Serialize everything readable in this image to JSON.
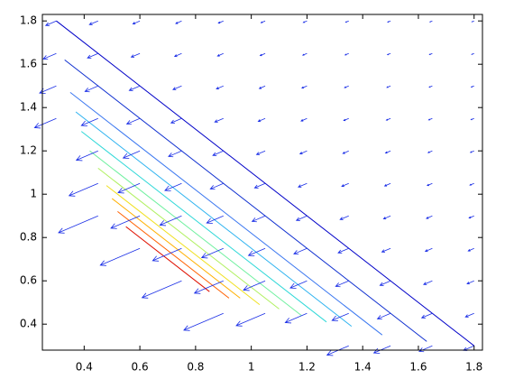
{
  "chart_data": {
    "type": "quiver",
    "xlim": [
      0.25,
      1.83
    ],
    "ylim": [
      0.28,
      1.83
    ],
    "xticks": [
      0.4,
      0.6,
      0.8,
      1,
      1.2,
      1.4,
      1.6,
      1.8
    ],
    "yticks": [
      0.4,
      0.6,
      0.8,
      1,
      1.2,
      1.4,
      1.6,
      1.8
    ],
    "arrow_color": "#1a2ee6",
    "x": [
      0.3,
      0.45,
      0.6,
      0.75,
      0.9,
      1.05,
      1.2,
      1.35,
      1.5,
      1.65,
      1.8
    ],
    "y": [
      0.3,
      0.45,
      0.6,
      0.75,
      0.9,
      1.05,
      1.2,
      1.35,
      1.5,
      1.65,
      1.8
    ],
    "u": [
      [
        null,
        null,
        null,
        null,
        null,
        null,
        null,
        -0.078,
        -0.06,
        -0.047,
        -0.038
      ],
      [
        null,
        null,
        null,
        null,
        -0.142,
        -0.104,
        -0.078,
        -0.06,
        -0.047,
        -0.038,
        -0.031
      ],
      [
        null,
        null,
        null,
        -0.142,
        -0.104,
        -0.078,
        -0.06,
        -0.047,
        -0.038,
        -0.031,
        -0.025
      ],
      [
        null,
        null,
        -0.142,
        -0.104,
        -0.078,
        -0.06,
        -0.047,
        -0.038,
        -0.031,
        -0.025,
        -0.021
      ],
      [
        null,
        -0.142,
        -0.104,
        -0.078,
        -0.06,
        -0.047,
        -0.038,
        -0.031,
        -0.025,
        -0.021,
        -0.018
      ],
      [
        null,
        -0.104,
        -0.078,
        -0.06,
        -0.047,
        -0.038,
        -0.031,
        -0.025,
        -0.021,
        -0.018,
        -0.015
      ],
      [
        null,
        -0.078,
        -0.06,
        -0.047,
        -0.038,
        -0.031,
        -0.025,
        -0.021,
        -0.018,
        -0.015,
        -0.013
      ],
      [
        -0.078,
        -0.06,
        -0.047,
        -0.038,
        -0.031,
        -0.025,
        -0.021,
        -0.018,
        -0.015,
        -0.013,
        -0.011
      ],
      [
        -0.06,
        -0.047,
        -0.038,
        -0.031,
        -0.025,
        -0.021,
        -0.018,
        -0.015,
        -0.013,
        -0.011,
        -0.01
      ],
      [
        -0.047,
        -0.038,
        -0.031,
        -0.025,
        -0.021,
        -0.018,
        -0.015,
        -0.013,
        -0.011,
        -0.01,
        -0.0085
      ],
      [
        -0.038,
        -0.031,
        -0.025,
        -0.021,
        -0.018,
        -0.015,
        -0.013,
        -0.011,
        -0.01,
        -0.0085,
        -0.0075
      ]
    ],
    "v": [
      [
        null,
        null,
        null,
        null,
        null,
        null,
        null,
        -0.043,
        -0.033,
        -0.026,
        -0.021
      ],
      [
        null,
        null,
        null,
        null,
        -0.078,
        -0.057,
        -0.043,
        -0.033,
        -0.026,
        -0.021,
        -0.017
      ],
      [
        null,
        null,
        null,
        -0.078,
        -0.057,
        -0.043,
        -0.033,
        -0.026,
        -0.021,
        -0.017,
        -0.014
      ],
      [
        null,
        null,
        -0.078,
        -0.057,
        -0.043,
        -0.033,
        -0.026,
        -0.021,
        -0.017,
        -0.014,
        -0.012
      ],
      [
        null,
        -0.078,
        -0.057,
        -0.043,
        -0.033,
        -0.026,
        -0.021,
        -0.017,
        -0.014,
        -0.012,
        -0.01
      ],
      [
        null,
        -0.057,
        -0.043,
        -0.033,
        -0.026,
        -0.021,
        -0.017,
        -0.014,
        -0.012,
        -0.01,
        -0.008
      ],
      [
        null,
        -0.043,
        -0.033,
        -0.026,
        -0.021,
        -0.017,
        -0.014,
        -0.012,
        -0.01,
        -0.008,
        -0.007
      ],
      [
        -0.043,
        -0.033,
        -0.026,
        -0.021,
        -0.017,
        -0.014,
        -0.012,
        -0.01,
        -0.008,
        -0.007,
        -0.006
      ],
      [
        -0.033,
        -0.026,
        -0.021,
        -0.017,
        -0.014,
        -0.012,
        -0.01,
        -0.008,
        -0.007,
        -0.006,
        -0.0055
      ],
      [
        -0.026,
        -0.021,
        -0.017,
        -0.014,
        -0.012,
        -0.01,
        -0.008,
        -0.007,
        -0.006,
        -0.0055,
        -0.0047
      ],
      [
        -0.021,
        -0.017,
        -0.014,
        -0.012,
        -0.01,
        -0.008,
        -0.007,
        -0.006,
        -0.0055,
        -0.0047,
        -0.0041
      ]
    ],
    "contours": [
      {
        "color": "#0000c8",
        "x": [
          0.3,
          1.8
        ],
        "y": [
          1.8,
          0.3
        ]
      },
      {
        "color": "#1030d0",
        "x": [
          0.33,
          1.63
        ],
        "y": [
          1.62,
          0.32
        ]
      },
      {
        "color": "#3c78f0",
        "x": [
          0.35,
          1.47
        ],
        "y": [
          1.47,
          0.35
        ]
      },
      {
        "color": "#30b4f0",
        "x": [
          0.37,
          1.36
        ],
        "y": [
          1.38,
          0.39
        ]
      },
      {
        "color": "#30d8d8",
        "x": [
          0.39,
          1.27
        ],
        "y": [
          1.29,
          0.41
        ]
      },
      {
        "color": "#70f0a0",
        "x": [
          0.42,
          1.18
        ],
        "y": [
          1.2,
          0.44
        ]
      },
      {
        "color": "#b0f060",
        "x": [
          0.45,
          1.1
        ],
        "y": [
          1.12,
          0.47
        ]
      },
      {
        "color": "#f0e020",
        "x": [
          0.48,
          1.03
        ],
        "y": [
          1.04,
          0.49
        ]
      },
      {
        "color": "#ffb000",
        "x": [
          0.5,
          0.96
        ],
        "y": [
          0.98,
          0.52
        ]
      },
      {
        "color": "#ff6000",
        "x": [
          0.52,
          0.92
        ],
        "y": [
          0.92,
          0.52
        ]
      },
      {
        "color": "#e01000",
        "x": [
          0.55,
          0.85
        ],
        "y": [
          0.85,
          0.55
        ]
      }
    ]
  }
}
